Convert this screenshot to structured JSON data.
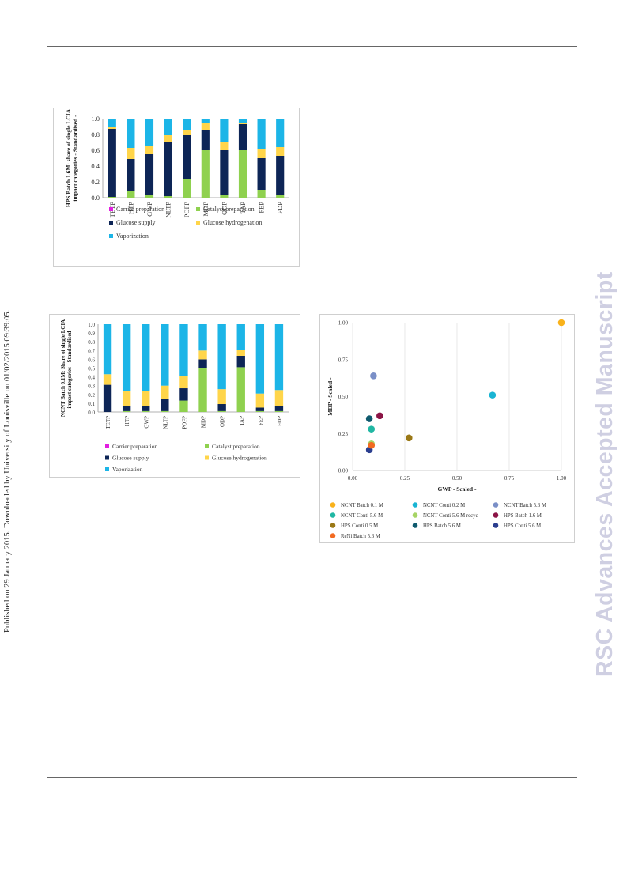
{
  "sidebar": {
    "published_line": "Published on 29 January 2015. Downloaded by University of Louisville on 01/02/2015 09:39:05."
  },
  "watermark": {
    "text": "RSC Advances Accepted Manuscript"
  },
  "colors": {
    "carrier": "#e21ee0",
    "catalyst": "#8fd14f",
    "glucose_supply": "#0d2556",
    "glucose_hydrogenation": "#ffd54a",
    "vaporization": "#1cb5e7"
  },
  "chart_data": [
    {
      "type": "bar",
      "stacked": true,
      "ylabel": "HPS Batch 1.6M: share of single LCIA impact categories - Standardised -",
      "ylim": [
        0,
        1.0
      ],
      "yticks": [
        "0.0",
        "0.2",
        "0.4",
        "0.6",
        "0.8",
        "1.0"
      ],
      "categories": [
        "TETP",
        "HTP",
        "GWP",
        "NLTP",
        "POFP",
        "MDP",
        "ODP",
        "TAP",
        "FEP",
        "FDP"
      ],
      "series": [
        {
          "name": "Carrier preparation",
          "values": [
            0,
            0,
            0,
            0,
            0,
            0,
            0,
            0,
            0,
            0
          ]
        },
        {
          "name": "Catalyst preparation",
          "values": [
            0.01,
            0.09,
            0.03,
            0.02,
            0.23,
            0.6,
            0.04,
            0.6,
            0.1,
            0.03
          ]
        },
        {
          "name": "Glucose supply",
          "values": [
            0.86,
            0.4,
            0.52,
            0.69,
            0.56,
            0.26,
            0.56,
            0.33,
            0.4,
            0.5
          ]
        },
        {
          "name": "Glucose hydrogenation",
          "values": [
            0.03,
            0.14,
            0.1,
            0.08,
            0.06,
            0.09,
            0.1,
            0.02,
            0.11,
            0.11
          ]
        },
        {
          "name": "Vaporization",
          "values": [
            0.1,
            0.37,
            0.35,
            0.21,
            0.15,
            0.05,
            0.3,
            0.05,
            0.39,
            0.36
          ]
        }
      ],
      "legend": [
        "Carrier preparation",
        "Catalyst preparation",
        "Glucose supply",
        "Glucose hydrogenation",
        "Vaporization"
      ],
      "legend_position": "bottom"
    },
    {
      "type": "bar",
      "stacked": true,
      "ylabel": "NCNT Batch 0.1M: Share of single LCIA impact categories - Standardised -",
      "ylim": [
        0,
        1.0
      ],
      "yticks": [
        "0.0",
        "0.1",
        "0.2",
        "0.3",
        "0.4",
        "0.5",
        "0.6",
        "0.7",
        "0.8",
        "0.9",
        "1.0"
      ],
      "categories": [
        "TETP",
        "HTP",
        "GWP",
        "NLTP",
        "POFP",
        "MDP",
        "ODP",
        "TAP",
        "FEP",
        "FDP"
      ],
      "series": [
        {
          "name": "Carrier preparation",
          "values": [
            0,
            0,
            0,
            0,
            0,
            0,
            0,
            0,
            0,
            0
          ]
        },
        {
          "name": "Catalyst preparation",
          "values": [
            0,
            0.01,
            0.01,
            0.01,
            0.13,
            0.5,
            0.01,
            0.51,
            0.01,
            0.01
          ]
        },
        {
          "name": "Glucose supply",
          "values": [
            0.31,
            0.06,
            0.06,
            0.14,
            0.14,
            0.1,
            0.08,
            0.13,
            0.04,
            0.06
          ]
        },
        {
          "name": "Glucose hydrogenation",
          "values": [
            0.12,
            0.17,
            0.17,
            0.15,
            0.14,
            0.1,
            0.17,
            0.07,
            0.16,
            0.18
          ]
        },
        {
          "name": "Vaporization",
          "values": [
            0.57,
            0.76,
            0.76,
            0.7,
            0.59,
            0.3,
            0.74,
            0.29,
            0.79,
            0.75
          ]
        }
      ],
      "legend": [
        "Carrier preparation",
        "Catalyst preparation",
        "Glucose supply",
        "Glucose hydrogenation",
        "Vaporization"
      ],
      "legend_position": "bottom"
    },
    {
      "type": "scatter",
      "xlabel": "GWP - Scaled -",
      "ylabel": "MDP - Scaled -",
      "xlim": [
        0,
        1.0
      ],
      "ylim": [
        0,
        1.0
      ],
      "xticks": [
        "0.00",
        "0.25",
        "0.50",
        "0.75",
        "1.00"
      ],
      "yticks": [
        "0.00",
        "0.25",
        "0.50",
        "0.75",
        "1.00"
      ],
      "grid": "vertical",
      "series": [
        {
          "name": "NCNT Batch 0.1 M",
          "color": "#f9b21b",
          "x": 1.0,
          "y": 1.0
        },
        {
          "name": "NCNT Conti 0.2 M",
          "color": "#19b4d3",
          "x": 0.67,
          "y": 0.51
        },
        {
          "name": "NCNT Batch 5.6 M",
          "color": "#7a8fc7",
          "x": 0.1,
          "y": 0.64
        },
        {
          "name": "NCNT Conti 5.6 M",
          "color": "#20b7a3",
          "x": 0.09,
          "y": 0.28
        },
        {
          "name": "NCNT Conti 5.6 M recyc",
          "color": "#a6d465",
          "x": 0.09,
          "y": 0.18
        },
        {
          "name": "HPS Batch 1.6 M",
          "color": "#8b1446",
          "x": 0.13,
          "y": 0.37
        },
        {
          "name": "HPS Conti 0.5 M",
          "color": "#9a7816",
          "x": 0.27,
          "y": 0.22
        },
        {
          "name": "HPS Batch 5.6 M",
          "color": "#0f5a6e",
          "x": 0.08,
          "y": 0.35
        },
        {
          "name": "HPS Conti 5.6 M",
          "color": "#2b3e8f",
          "x": 0.08,
          "y": 0.14
        },
        {
          "name": "ReNi Batch 5.6 M",
          "color": "#f26a21",
          "x": 0.09,
          "y": 0.17
        }
      ],
      "legend_position": "bottom"
    }
  ]
}
